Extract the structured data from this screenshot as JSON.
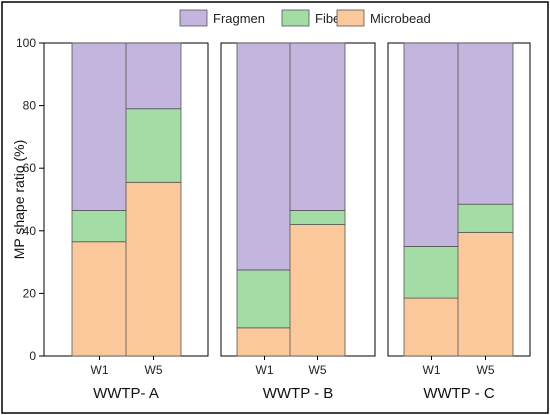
{
  "chart_data": {
    "type": "bar",
    "stacked": true,
    "ylabel": "MP shape ratio (%)",
    "ylim": [
      0,
      100
    ],
    "yticks": [
      0,
      20,
      40,
      60,
      80,
      100
    ],
    "legend_position": "top",
    "series": [
      {
        "name": "Fragmen",
        "color": "#c3b5dd"
      },
      {
        "name": "Fiber",
        "color": "#a4dca5"
      },
      {
        "name": "Microbead",
        "color": "#fbc89b"
      }
    ],
    "panels": [
      {
        "label": "WWTP- A",
        "categories": [
          "W1",
          "W5"
        ],
        "values": {
          "Microbead": [
            36.5,
            55.5
          ],
          "Fiber": [
            10,
            23.5
          ],
          "Fragmen": [
            53.5,
            21
          ]
        }
      },
      {
        "label": "WWTP - B",
        "categories": [
          "W1",
          "W5"
        ],
        "values": {
          "Microbead": [
            9,
            42
          ],
          "Fiber": [
            18.5,
            4.5
          ],
          "Fragmen": [
            72.5,
            53.5
          ]
        }
      },
      {
        "label": "WWTP - C",
        "categories": [
          "W1",
          "W5"
        ],
        "values": {
          "Microbead": [
            18.5,
            39.5
          ],
          "Fiber": [
            16.5,
            9
          ],
          "Fragmen": [
            65,
            51.5
          ]
        }
      }
    ]
  }
}
